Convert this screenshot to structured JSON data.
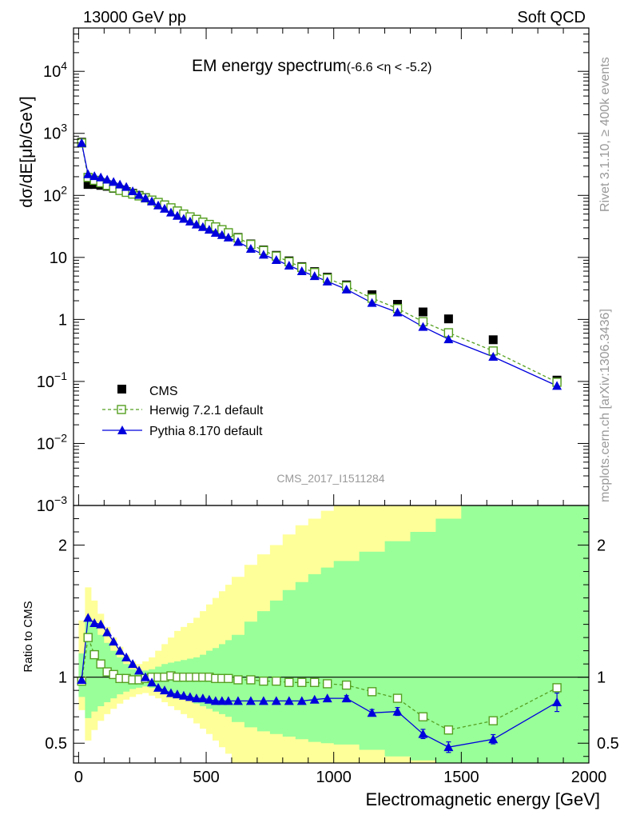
{
  "header": {
    "left": "13000 GeV pp",
    "right": "Soft QCD"
  },
  "side_labels": {
    "rivet": "Rivet 3.1.10, ≥ 400k events",
    "site": "mcplots.cern.ch [arXiv:1306.3436]"
  },
  "chart_data": [
    {
      "type": "line",
      "panel": "main",
      "title": "EM energy spectrum",
      "subtitle": "(-6.6 <η < -5.2)",
      "watermark": "CMS_2017_I1511284",
      "ylabel": "dσ/dE[μb/GeV]",
      "yscale": "log",
      "xlim": [
        -20,
        2000
      ],
      "ylim": [
        0.001,
        50000
      ],
      "ytick_labels": [
        {
          "value": 10000,
          "label": "10",
          "exp": "4"
        },
        {
          "value": 1000,
          "label": "10",
          "exp": "3"
        },
        {
          "value": 100,
          "label": "10",
          "exp": "2"
        },
        {
          "value": 10,
          "label": "10",
          "exp": ""
        },
        {
          "value": 1,
          "label": "1",
          "exp": ""
        },
        {
          "value": 0.1,
          "label": "10",
          "exp": "−1"
        },
        {
          "value": 0.01,
          "label": "10",
          "exp": "−2"
        },
        {
          "value": 0.001,
          "label": "10",
          "exp": "−3"
        }
      ],
      "legend": [
        "CMS",
        "Herwig 7.2.1 default",
        "Pythia 8.170 default"
      ],
      "legend_position": "bottom-left",
      "x": [
        12,
        37,
        62,
        87,
        112,
        137,
        162,
        187,
        212,
        237,
        262,
        287,
        312,
        337,
        362,
        387,
        412,
        437,
        462,
        487,
        512,
        537,
        562,
        587,
        625,
        675,
        725,
        775,
        825,
        875,
        925,
        975,
        1050,
        1150,
        1250,
        1350,
        1450,
        1625,
        1875
      ],
      "series": [
        {
          "name": "CMS",
          "color": "#000000",
          "marker": "square",
          "values": [
            720,
            150,
            150,
            145,
            140,
            130,
            122,
            115,
            108,
            100,
            92,
            84,
            77,
            70,
            62,
            56,
            50,
            45,
            41,
            37,
            34,
            31,
            28,
            25,
            21,
            16.5,
            13.2,
            10.8,
            8.8,
            7.1,
            5.9,
            4.8,
            3.6,
            2.5,
            1.75,
            1.32,
            1.02,
            0.47,
            0.105
          ]
        },
        {
          "name": "Herwig 7.2.1 default",
          "color": "#55a021",
          "marker": "open-square",
          "values": [
            700,
            195,
            175,
            160,
            145,
            132,
            120,
            112,
            105,
            98,
            91,
            84,
            77,
            70,
            63,
            56,
            50,
            45,
            41,
            37,
            34,
            31,
            28,
            25,
            20.6,
            16.2,
            12.9,
            10.5,
            8.5,
            6.9,
            5.7,
            4.6,
            3.45,
            2.2,
            1.5,
            0.92,
            0.61,
            0.31,
            0.097
          ]
        },
        {
          "name": "Pythia 8.170 default",
          "color": "#0000dd",
          "marker": "triangle",
          "values": [
            700,
            220,
            205,
            195,
            180,
            165,
            150,
            137,
            117,
            102,
            90,
            80,
            69,
            61,
            53,
            47,
            42,
            38,
            34,
            31,
            28,
            25,
            23,
            21,
            17.8,
            13.8,
            11.1,
            9.1,
            7.4,
            6.0,
            5.0,
            4.1,
            3.05,
            1.85,
            1.3,
            0.76,
            0.48,
            0.25,
            0.085
          ]
        }
      ]
    },
    {
      "type": "line",
      "panel": "ratio",
      "ylabel": "Ratio to CMS",
      "xlabel": "Electromagnetic energy [GeV]",
      "xlim": [
        -20,
        2000
      ],
      "ylim": [
        0.35,
        2.3
      ],
      "x_ticks": [
        0,
        500,
        1000,
        1500,
        2000
      ],
      "x_tick_labels": [
        "0",
        "500",
        "1000",
        "1500",
        "2000"
      ],
      "y_ticks": [
        0.5,
        1,
        2
      ],
      "y_tick_labels": [
        "0.5",
        "1",
        "2"
      ],
      "reference_line": 1,
      "band_edges": [
        0,
        25,
        50,
        75,
        100,
        125,
        150,
        175,
        200,
        225,
        250,
        275,
        300,
        325,
        350,
        375,
        400,
        425,
        450,
        475,
        500,
        525,
        550,
        575,
        600,
        650,
        700,
        750,
        800,
        850,
        900,
        950,
        1000,
        1100,
        1200,
        1300,
        1400,
        1500,
        1750,
        2000
      ],
      "yellow_band": {
        "color": "#ffff99",
        "upper": [
          1.43,
          1.68,
          1.58,
          1.48,
          1.38,
          1.3,
          1.23,
          1.17,
          1.12,
          1.1,
          1.12,
          1.15,
          1.2,
          1.25,
          1.3,
          1.35,
          1.38,
          1.41,
          1.45,
          1.5,
          1.55,
          1.6,
          1.65,
          1.7,
          1.76,
          1.85,
          1.93,
          2.0,
          2.08,
          2.15,
          2.2,
          2.26,
          2.3,
          2.3,
          2.3,
          2.3,
          2.3,
          2.3,
          2.3
        ],
        "lower": [
          0.75,
          0.52,
          0.6,
          0.67,
          0.72,
          0.76,
          0.8,
          0.83,
          0.85,
          0.87,
          0.88,
          0.86,
          0.84,
          0.81,
          0.78,
          0.75,
          0.72,
          0.69,
          0.65,
          0.61,
          0.57,
          0.52,
          0.47,
          0.42,
          0.35,
          0.35,
          0.35,
          0.35,
          0.35,
          0.35,
          0.35,
          0.35,
          0.35,
          0.35,
          0.35,
          0.35,
          0.35,
          0.35,
          0.35
        ]
      },
      "green_band": {
        "color": "#99ff99",
        "upper": [
          1.18,
          1.45,
          1.38,
          1.32,
          1.26,
          1.2,
          1.15,
          1.1,
          1.06,
          1.04,
          1.05,
          1.06,
          1.08,
          1.1,
          1.11,
          1.12,
          1.13,
          1.14,
          1.15,
          1.17,
          1.2,
          1.22,
          1.25,
          1.28,
          1.32,
          1.42,
          1.5,
          1.58,
          1.66,
          1.72,
          1.78,
          1.83,
          1.88,
          1.95,
          2.03,
          2.1,
          2.2,
          2.3,
          2.3
        ],
        "lower": [
          0.85,
          0.69,
          0.74,
          0.78,
          0.81,
          0.84,
          0.87,
          0.89,
          0.91,
          0.92,
          0.93,
          0.92,
          0.91,
          0.89,
          0.88,
          0.86,
          0.84,
          0.82,
          0.8,
          0.78,
          0.76,
          0.74,
          0.72,
          0.7,
          0.66,
          0.62,
          0.59,
          0.57,
          0.55,
          0.53,
          0.51,
          0.5,
          0.49,
          0.45,
          0.4,
          0.37,
          0.35,
          0.35,
          0.35
        ]
      },
      "series": [
        {
          "name": "Herwig 7.2.1 default",
          "color": "#55a021",
          "marker": "open-square",
          "values": [
            0.97,
            1.3,
            1.17,
            1.1,
            1.04,
            1.02,
            0.99,
            0.99,
            0.98,
            0.98,
            0.99,
            1.0,
            1.0,
            1.0,
            1.01,
            1.0,
            1.0,
            1.0,
            1.0,
            1.0,
            1.0,
            0.99,
            0.99,
            0.99,
            0.98,
            0.98,
            0.97,
            0.97,
            0.96,
            0.96,
            0.96,
            0.95,
            0.94,
            0.89,
            0.84,
            0.7,
            0.6,
            0.67,
            0.92
          ]
        },
        {
          "name": "Pythia 8.170 default",
          "color": "#0000dd",
          "marker": "triangle",
          "values": [
            0.98,
            1.45,
            1.41,
            1.4,
            1.34,
            1.27,
            1.2,
            1.15,
            1.1,
            1.05,
            1.0,
            0.96,
            0.92,
            0.9,
            0.88,
            0.87,
            0.86,
            0.85,
            0.84,
            0.84,
            0.83,
            0.82,
            0.82,
            0.82,
            0.82,
            0.82,
            0.82,
            0.82,
            0.82,
            0.82,
            0.83,
            0.84,
            0.84,
            0.73,
            0.74,
            0.57,
            0.47,
            0.53,
            0.81
          ],
          "errors": [
            0,
            0,
            0,
            0,
            0,
            0,
            0,
            0,
            0,
            0,
            0,
            0,
            0,
            0,
            0,
            0,
            0,
            0,
            0,
            0,
            0,
            0,
            0,
            0,
            0,
            0,
            0,
            0,
            0,
            0,
            0,
            0,
            0.02,
            0.025,
            0.03,
            0.035,
            0.04,
            0.035,
            0.07
          ]
        }
      ]
    }
  ]
}
